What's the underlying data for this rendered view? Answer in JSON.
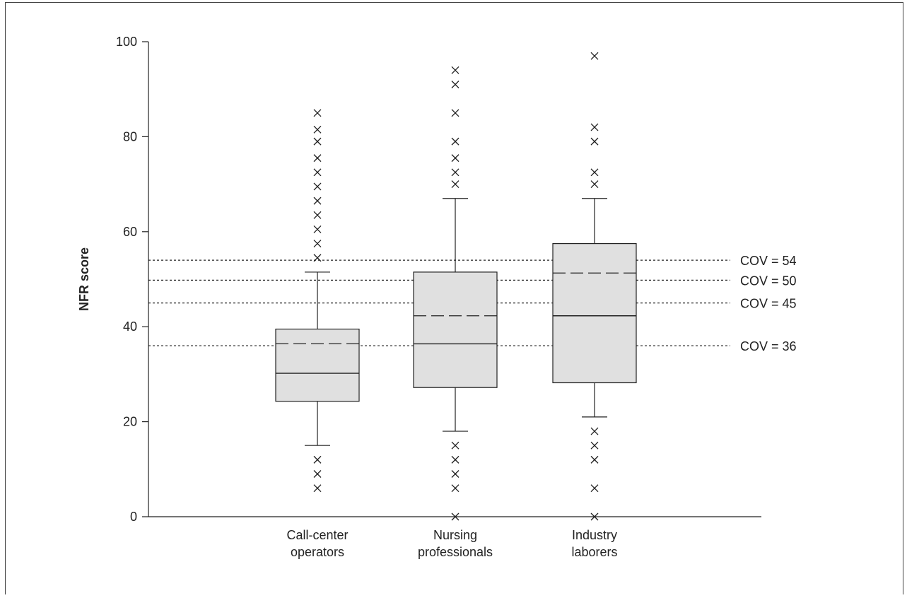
{
  "chart_data": {
    "type": "box",
    "ylabel": "NFR score",
    "ylim": [
      0,
      100
    ],
    "yticks": [
      0,
      20,
      40,
      60,
      80,
      100
    ],
    "grid": false,
    "categories": [
      [
        "Call-center",
        "operators"
      ],
      [
        "Nursing",
        "professionals"
      ],
      [
        "Industry",
        "laborers"
      ]
    ],
    "boxes": [
      {
        "whisker_low": 15,
        "q1": 24.3,
        "median": 30.2,
        "mean": 36.4,
        "q3": 39.5,
        "whisker_high": 51.5,
        "outliers": [
          85,
          81.5,
          79,
          75.5,
          72.5,
          69.5,
          66.5,
          63.5,
          60.5,
          57.5,
          54.5,
          12,
          9,
          6
        ]
      },
      {
        "whisker_low": 18,
        "q1": 27.2,
        "median": 36.4,
        "mean": 42.3,
        "q3": 51.5,
        "whisker_high": 67,
        "outliers": [
          94,
          91,
          85,
          79,
          75.5,
          72.5,
          70,
          15,
          12,
          9,
          6,
          0
        ]
      },
      {
        "whisker_low": 21,
        "q1": 28.2,
        "median": 42.3,
        "mean": 51.3,
        "q3": 57.5,
        "whisker_high": 67,
        "outliers": [
          97,
          82,
          79,
          72.5,
          70,
          18,
          15,
          12,
          6,
          0
        ]
      }
    ],
    "reference_lines": [
      {
        "value": 54,
        "label": "COV = 54"
      },
      {
        "value": 49.8,
        "label": "COV = 50"
      },
      {
        "value": 45,
        "label": "COV = 45"
      },
      {
        "value": 36,
        "label": "COV = 36"
      }
    ],
    "colors": {
      "box_fill": "#e0e0e0",
      "stroke": "#222222"
    }
  }
}
